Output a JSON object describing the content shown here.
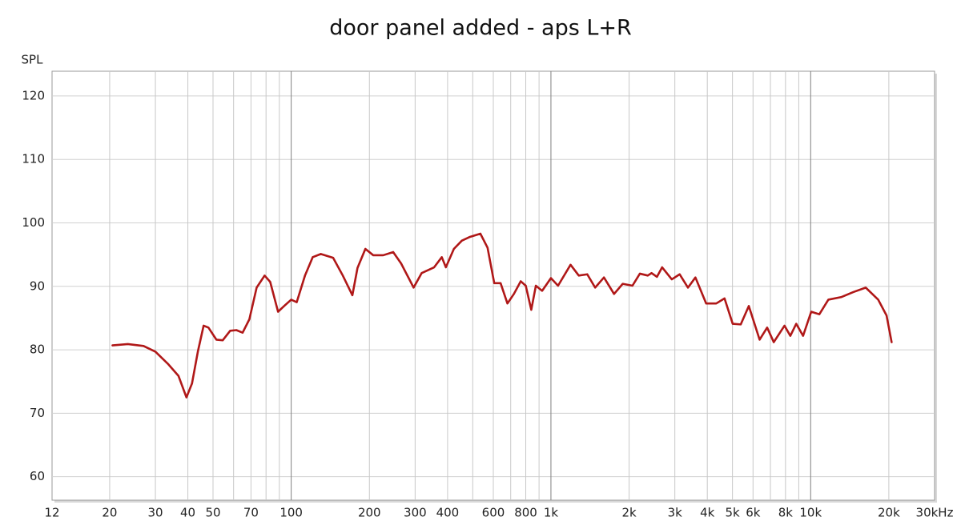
{
  "chart_data": {
    "type": "line",
    "title": "door panel added - aps L+R",
    "y_label": "SPL",
    "x_log": true,
    "grid": true,
    "xlim": [
      12,
      30000
    ],
    "ylim": [
      56.3,
      123.9
    ],
    "yticks": [
      60,
      70,
      80,
      90,
      100,
      110,
      120
    ],
    "xticks": [
      12,
      20,
      30,
      40,
      50,
      70,
      100,
      200,
      300,
      400,
      600,
      800,
      {
        "value": 1000,
        "label": "1k"
      },
      {
        "value": 2000,
        "label": "2k"
      },
      {
        "value": 3000,
        "label": "3k"
      },
      {
        "value": 4000,
        "label": "4k"
      },
      {
        "value": 5000,
        "label": "5k"
      },
      {
        "value": 6000,
        "label": "6k"
      },
      {
        "value": 8000,
        "label": "8k"
      },
      {
        "value": 10000,
        "label": "10k"
      },
      {
        "value": 20000,
        "label": "20k"
      },
      {
        "value": 30000,
        "label": "30kHz"
      }
    ],
    "minor_xgrid": [
      60,
      80,
      90,
      500,
      700,
      900,
      7000,
      9000
    ],
    "series": [
      {
        "color": "#b01818",
        "x": [
          20.5,
          23.5,
          27,
          30,
          33.5,
          36.8,
          39.5,
          41.5,
          43.7,
          46,
          48,
          51.5,
          54.5,
          58.2,
          61.5,
          65,
          69,
          73.6,
          79,
          83,
          89,
          94.5,
          100,
          105,
          113,
          121,
          130,
          145,
          158,
          172,
          180,
          193,
          207,
          226,
          247,
          265,
          296,
          318,
          355,
          380,
          394,
          423,
          454,
          488,
          535,
          570,
          605,
          640,
          680,
          720,
          765,
          800,
          840,
          875,
          925,
          1000,
          1065,
          1190,
          1280,
          1380,
          1480,
          1600,
          1750,
          1890,
          2060,
          2200,
          2360,
          2440,
          2560,
          2680,
          2920,
          3130,
          3370,
          3600,
          3960,
          4330,
          4660,
          5010,
          5380,
          5780,
          6360,
          6800,
          7210,
          7930,
          8350,
          8800,
          9350,
          10050,
          10800,
          11700,
          13100,
          14600,
          16300,
          18200,
          19600,
          20500
        ],
        "values": [
          80.7,
          80.9,
          80.6,
          79.7,
          77.8,
          75.9,
          72.5,
          74.7,
          79.7,
          83.8,
          83.5,
          81.6,
          81.5,
          83,
          83.1,
          82.7,
          84.8,
          89.8,
          91.7,
          90.7,
          86,
          87,
          87.9,
          87.5,
          91.7,
          94.6,
          95.1,
          94.5,
          91.7,
          88.6,
          92.9,
          95.9,
          94.9,
          94.9,
          95.4,
          93.6,
          89.8,
          92.1,
          93,
          94.6,
          93,
          95.9,
          97.2,
          97.8,
          98.3,
          96.1,
          90.5,
          90.5,
          87.3,
          88.8,
          90.8,
          90.1,
          86.3,
          90.1,
          89.3,
          91.3,
          90.1,
          93.4,
          91.7,
          91.9,
          89.8,
          91.4,
          88.8,
          90.4,
          90.1,
          92,
          91.7,
          92.1,
          91.5,
          93,
          91.1,
          91.9,
          89.8,
          91.4,
          87.3,
          87.3,
          88.1,
          84.1,
          84,
          86.9,
          81.6,
          83.5,
          81.2,
          83.8,
          82.2,
          84.1,
          82.2,
          86,
          85.6,
          87.9,
          88.3,
          89.1,
          89.8,
          87.9,
          85.4,
          81.2
        ]
      }
    ]
  }
}
